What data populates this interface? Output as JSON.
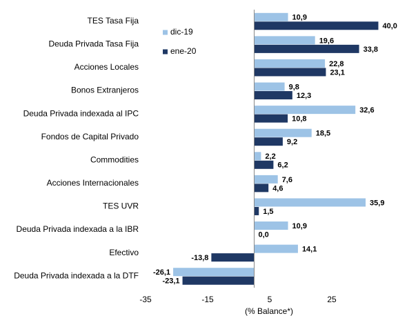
{
  "chart_data": {
    "type": "hbar",
    "categories": [
      "TES Tasa Fija",
      "Deuda Privada Tasa Fija",
      "Acciones Locales",
      "Bonos Extranjeros",
      "Deuda Privada indexada al IPC",
      "Fondos de Capital Privado",
      "Commodities",
      "Acciones Internacionales",
      "TES UVR",
      "Deuda Privada indexada a la IBR",
      "Efectivo",
      "Deuda Privada indexada a la DTF"
    ],
    "series": [
      {
        "name": "dic-19",
        "color": "#9dc3e6",
        "values": [
          10.9,
          19.6,
          22.8,
          9.8,
          32.6,
          18.5,
          2.2,
          7.6,
          35.9,
          10.9,
          14.1,
          -26.1
        ],
        "value_labels": [
          "10,9",
          "19,6",
          "22,8",
          "9,8",
          "32,6",
          "18,5",
          "2,2",
          "7,6",
          "35,9",
          "10,9",
          "14,1",
          "-26,1"
        ]
      },
      {
        "name": "ene-20",
        "color": "#1f3864",
        "values": [
          40.0,
          33.8,
          23.1,
          12.3,
          10.8,
          9.2,
          6.2,
          4.6,
          1.5,
          0.0,
          -13.8,
          -23.1
        ],
        "value_labels": [
          "40,0",
          "33,8",
          "23,1",
          "12,3",
          "10,8",
          "9,2",
          "6,2",
          "4,6",
          "1,5",
          "0,0",
          "-13,8",
          "-23,1"
        ]
      }
    ],
    "xlabel": "(% Balance*)",
    "xlim": [
      -35,
      40
    ],
    "xticks": [
      -35,
      -15,
      5,
      25
    ],
    "legend": "upper left",
    "grid": false
  }
}
